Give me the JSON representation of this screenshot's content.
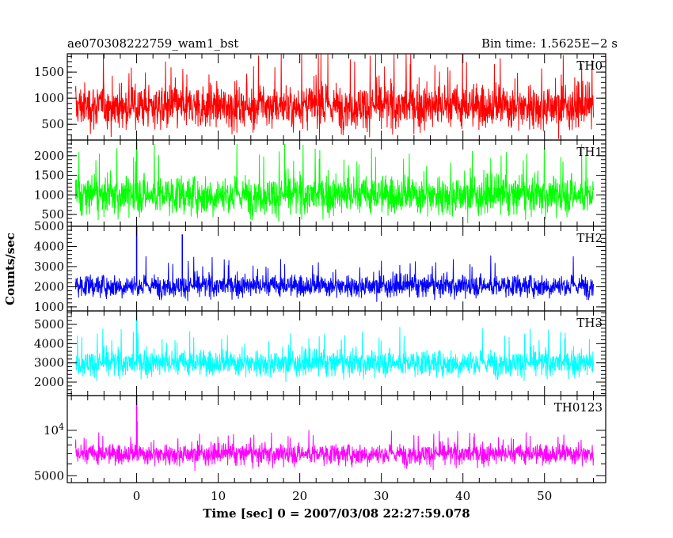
{
  "chart_data": {
    "type": "line",
    "title_left": "ae070308222759_wam1_bst",
    "title_right": "Bin time: 1.5625E−2 s",
    "xlabel": "Time [sec] 0 = 2007/03/08 22:27:59.078",
    "ylabel": "Counts/sec",
    "xlim": [
      -8.5,
      57.5
    ],
    "x_ticks": [
      0,
      10,
      20,
      30,
      40,
      50
    ],
    "x_minor_step": 2,
    "data_range": [
      -7.5,
      56
    ],
    "panels": [
      {
        "name": "TH0",
        "color": "#ff0000",
        "ylim": [
          200,
          1850
        ],
        "y_ticks": [
          {
            "v": 500,
            "label": "500"
          },
          {
            "v": 1000,
            "label": "1000"
          },
          {
            "v": 1500,
            "label": "1500"
          }
        ],
        "minor_step": 100,
        "mean": 850,
        "spread": 330,
        "min": 180,
        "max": 1840,
        "spikes": []
      },
      {
        "name": "TH1",
        "color": "#00ff00",
        "ylim": [
          200,
          2400
        ],
        "y_ticks": [
          {
            "v": 500,
            "label": "500"
          },
          {
            "v": 1000,
            "label": "1000"
          },
          {
            "v": 1500,
            "label": "1500"
          },
          {
            "v": 2000,
            "label": "2000"
          }
        ],
        "minor_step": 100,
        "mean": 1000,
        "spread": 380,
        "min": 250,
        "max": 2300,
        "spikes": [
          {
            "x": 0,
            "y": 2350
          }
        ]
      },
      {
        "name": "TH2",
        "color": "#0000ff",
        "ylim": [
          800,
          5000
        ],
        "y_ticks": [
          {
            "v": 1000,
            "label": "1000"
          },
          {
            "v": 2000,
            "label": "2000"
          },
          {
            "v": 3000,
            "label": "3000"
          },
          {
            "v": 4000,
            "label": "4000"
          },
          {
            "v": 5000,
            "label": "5000"
          }
        ],
        "minor_step": 200,
        "mean": 2050,
        "spread": 420,
        "min": 1000,
        "max": 3900,
        "spikes": [
          {
            "x": 0,
            "y": 5000
          },
          {
            "x": 5.6,
            "y": 4600
          }
        ]
      },
      {
        "name": "TH3",
        "color": "#00ffff",
        "ylim": [
          1300,
          5700
        ],
        "y_ticks": [
          {
            "v": 2000,
            "label": "2000"
          },
          {
            "v": 3000,
            "label": "3000"
          },
          {
            "v": 4000,
            "label": "4000"
          },
          {
            "v": 5000,
            "label": "5000"
          }
        ],
        "minor_step": 200,
        "mean": 3000,
        "spread": 520,
        "min": 1500,
        "max": 5300,
        "spikes": [
          {
            "x": 0,
            "y": 5700
          }
        ]
      },
      {
        "name": "TH0123",
        "color": "#ff00ff",
        "ylim": [
          4500,
          17000
        ],
        "log": true,
        "y_ticks": [
          {
            "v": 5000,
            "label": "5000"
          },
          {
            "v": 10000,
            "label": "10",
            "sup": "4"
          }
        ],
        "minor_ticks": [
          6000,
          7000,
          8000,
          9000
        ],
        "mean": 7000,
        "spread": 850,
        "min": 5000,
        "max": 10300,
        "spikes": [
          {
            "x": 0,
            "y": 17000
          },
          {
            "x": 0.05,
            "y": 11500
          }
        ]
      }
    ]
  }
}
